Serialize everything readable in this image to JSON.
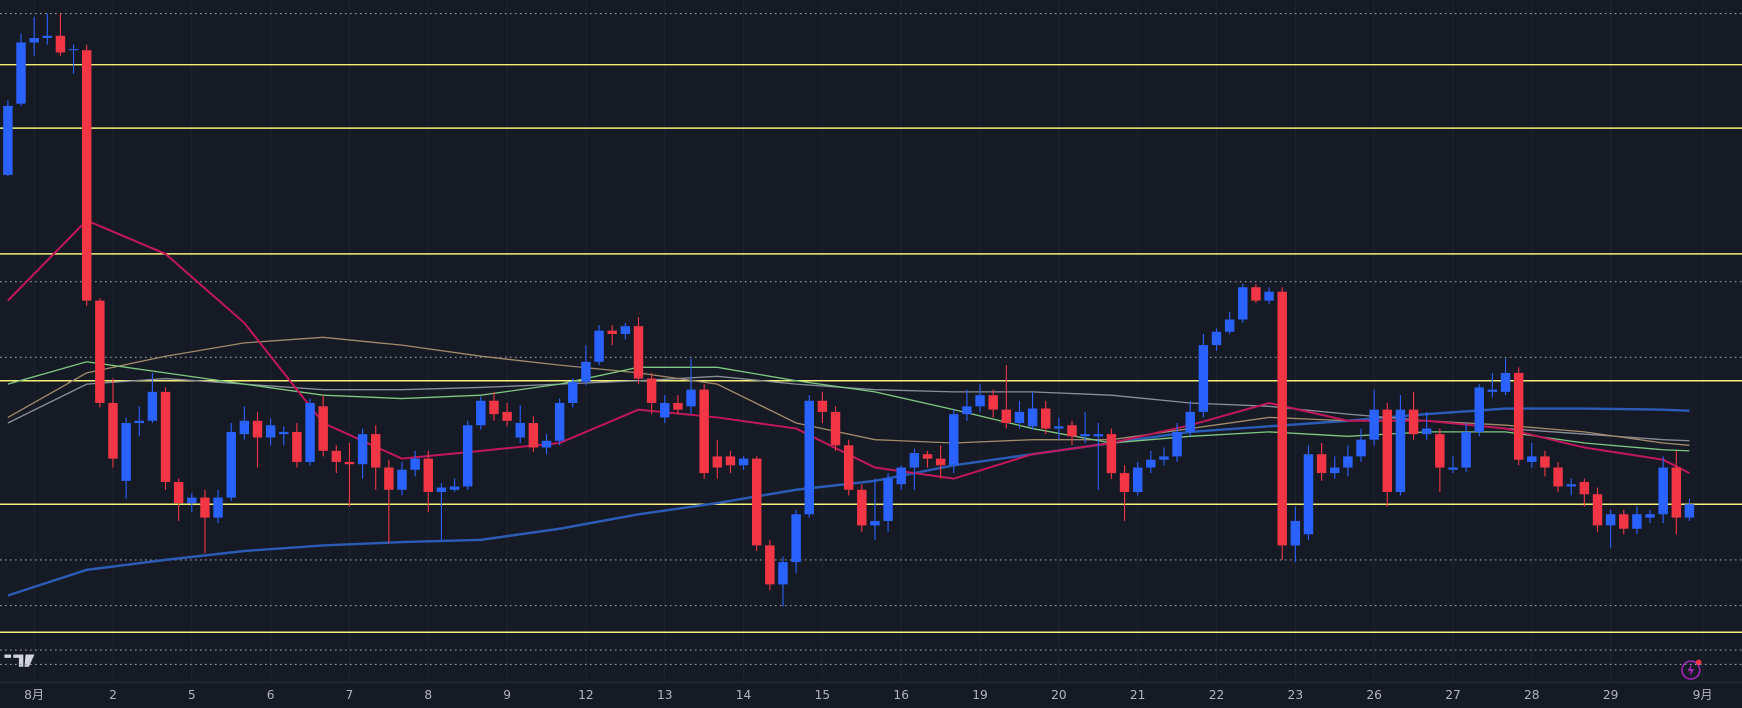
{
  "chart_data": {
    "type": "candlestick",
    "up_color": "#2962ff",
    "down_color": "#f23645",
    "open": [
      483,
      547,
      602,
      606,
      608,
      595,
      595,
      370,
      278,
      208,
      260,
      262,
      288,
      207,
      188,
      193,
      175,
      193,
      250,
      262,
      247,
      250,
      252,
      225,
      275,
      235,
      225,
      223,
      250,
      220,
      200,
      218,
      228,
      198,
      200,
      203,
      258,
      280,
      270,
      247,
      260,
      238,
      244,
      278,
      297,
      315,
      343,
      340,
      347,
      300,
      265,
      278,
      275,
      290,
      230,
      230,
      222,
      228,
      150,
      115,
      135,
      178,
      280,
      270,
      240,
      200,
      168,
      172,
      205,
      220,
      232,
      228,
      222,
      268,
      275,
      285,
      272,
      260,
      257,
      273,
      255,
      258,
      248,
      248,
      250,
      215,
      198,
      220,
      227,
      230,
      252,
      270,
      330,
      342,
      353,
      382,
      370,
      378,
      150,
      160,
      232,
      215,
      220,
      230,
      245,
      272,
      198,
      272,
      250,
      250,
      218,
      220,
      252,
      288,
      288,
      305,
      225,
      230,
      220,
      203,
      207,
      196,
      168,
      178,
      165,
      175,
      178,
      220,
      175
    ],
    "high": [
      550,
      610,
      625,
      628,
      628,
      600,
      600,
      372,
      300,
      265,
      275,
      305,
      292,
      210,
      197,
      200,
      200,
      260,
      275,
      270,
      264,
      257,
      260,
      282,
      285,
      240,
      242,
      255,
      258,
      227,
      225,
      235,
      235,
      206,
      210,
      262,
      284,
      288,
      278,
      276,
      266,
      250,
      282,
      300,
      330,
      348,
      348,
      350,
      355,
      305,
      285,
      285,
      318,
      295,
      245,
      235,
      230,
      230,
      155,
      140,
      182,
      285,
      288,
      275,
      245,
      205,
      210,
      215,
      222,
      237,
      235,
      240,
      272,
      290,
      295,
      290,
      312,
      280,
      288,
      280,
      265,
      262,
      270,
      260,
      255,
      222,
      225,
      235,
      238,
      260,
      280,
      340,
      345,
      360,
      385,
      385,
      382,
      382,
      185,
      240,
      242,
      230,
      240,
      255,
      290,
      278,
      285,
      288,
      270,
      255,
      230,
      260,
      295,
      305,
      318,
      310,
      242,
      235,
      225,
      210,
      210,
      202,
      182,
      182,
      185,
      182,
      230,
      235,
      192
    ],
    "low": [
      482,
      545,
      590,
      600,
      590,
      574,
      365,
      274,
      220,
      192,
      248,
      260,
      200,
      172,
      180,
      143,
      170,
      190,
      245,
      220,
      240,
      240,
      220,
      222,
      230,
      215,
      185,
      210,
      200,
      152,
      195,
      212,
      180,
      155,
      198,
      200,
      254,
      262,
      257,
      242,
      234,
      232,
      240,
      274,
      294,
      312,
      330,
      335,
      295,
      268,
      260,
      268,
      268,
      210,
      210,
      215,
      218,
      145,
      110,
      95,
      125,
      175,
      260,
      235,
      195,
      162,
      155,
      162,
      200,
      200,
      220,
      210,
      215,
      262,
      270,
      265,
      255,
      255,
      254,
      250,
      245,
      240,
      242,
      200,
      210,
      172,
      195,
      215,
      222,
      225,
      248,
      265,
      325,
      340,
      350,
      368,
      367,
      137,
      135,
      155,
      208,
      210,
      212,
      225,
      240,
      185,
      195,
      245,
      245,
      198,
      215,
      216,
      248,
      283,
      285,
      222,
      220,
      212,
      198,
      195,
      185,
      162,
      148,
      160,
      160,
      170,
      170,
      160,
      172
    ],
    "close": [
      545,
      602,
      606,
      608,
      593,
      596,
      370,
      278,
      228,
      260,
      262,
      288,
      207,
      188,
      193,
      175,
      193,
      252,
      262,
      247,
      258,
      252,
      225,
      278,
      235,
      225,
      223,
      250,
      220,
      200,
      218,
      228,
      198,
      202,
      203,
      258,
      280,
      268,
      262,
      260,
      238,
      244,
      278,
      297,
      315,
      343,
      340,
      347,
      300,
      278,
      278,
      272,
      290,
      215,
      220,
      222,
      228,
      150,
      115,
      135,
      178,
      280,
      270,
      240,
      200,
      168,
      172,
      210,
      220,
      233,
      228,
      222,
      268,
      275,
      285,
      272,
      260,
      270,
      273,
      255,
      257,
      248,
      250,
      250,
      215,
      198,
      220,
      227,
      230,
      252,
      270,
      330,
      342,
      353,
      382,
      370,
      378,
      150,
      172,
      232,
      215,
      220,
      230,
      245,
      272,
      198,
      272,
      250,
      255,
      220,
      220,
      252,
      292,
      290,
      305,
      227,
      230,
      220,
      203,
      205,
      196,
      168,
      178,
      165,
      178,
      178,
      220,
      175,
      187
    ],
    "ma_x": [
      0,
      6,
      12,
      18,
      24,
      30,
      36,
      42,
      48,
      54,
      60,
      66,
      72,
      78,
      84,
      90,
      96,
      102,
      108,
      114,
      120,
      126,
      128
    ],
    "lines": [
      {
        "color": "#2a5bb5",
        "values": [
          105,
          128,
          137,
          145,
          150,
          153,
          155,
          165,
          178,
          188,
          200,
          208,
          222,
          232,
          242,
          252,
          257,
          262,
          268,
          273,
          273,
          272,
          271
        ]
      },
      {
        "color": "#8a8e99",
        "values": [
          260,
          295,
          300,
          295,
          290,
          290,
          292,
          295,
          298,
          302,
          295,
          290,
          288,
          288,
          285,
          278,
          275,
          268,
          262,
          255,
          250,
          245,
          244
        ]
      },
      {
        "color": "#a08a6a",
        "values": [
          265,
          305,
          320,
          332,
          337,
          330,
          320,
          312,
          305,
          295,
          260,
          245,
          242,
          245,
          245,
          255,
          265,
          262,
          262,
          258,
          252,
          242,
          240
        ]
      },
      {
        "color": "#7fc87f",
        "values": [
          295,
          315,
          305,
          295,
          285,
          282,
          285,
          295,
          310,
          310,
          298,
          288,
          272,
          255,
          242,
          248,
          252,
          248,
          252,
          252,
          242,
          236,
          235
        ]
      },
      {
        "color": "#c2185b",
        "values": [
          370,
          442,
          412,
          350,
          260,
          228,
          235,
          242,
          272,
          265,
          255,
          220,
          210,
          232,
          242,
          258,
          278,
          262,
          262,
          255,
          238,
          227,
          215
        ]
      }
    ],
    "levels": [
      582,
      525,
      412,
      298,
      187,
      72
    ],
    "level_color": "#f5f07a",
    "dotted_levels": [
      628,
      387,
      319,
      137,
      96,
      56,
      43
    ],
    "ylim": [
      27,
      640
    ],
    "xlim": [
      -0.6,
      132
    ],
    "xticks": [
      {
        "value": 2,
        "label": "8月"
      },
      {
        "value": 8,
        "label": "2"
      },
      {
        "value": 14,
        "label": "5"
      },
      {
        "value": 20,
        "label": "6"
      },
      {
        "value": 26,
        "label": "7"
      },
      {
        "value": 32,
        "label": "8"
      },
      {
        "value": 38,
        "label": "9"
      },
      {
        "value": 44,
        "label": "12"
      },
      {
        "value": 50,
        "label": "13"
      },
      {
        "value": 56,
        "label": "14"
      },
      {
        "value": 62,
        "label": "15"
      },
      {
        "value": 68,
        "label": "16"
      },
      {
        "value": 74,
        "label": "19"
      },
      {
        "value": 80,
        "label": "20"
      },
      {
        "value": 86,
        "label": "21"
      },
      {
        "value": 92,
        "label": "22"
      },
      {
        "value": 98,
        "label": "23"
      },
      {
        "value": 104,
        "label": "26"
      },
      {
        "value": 110,
        "label": "27"
      },
      {
        "value": 116,
        "label": "28"
      },
      {
        "value": 122,
        "label": "29"
      },
      {
        "value": 129,
        "label": "9月"
      }
    ]
  }
}
